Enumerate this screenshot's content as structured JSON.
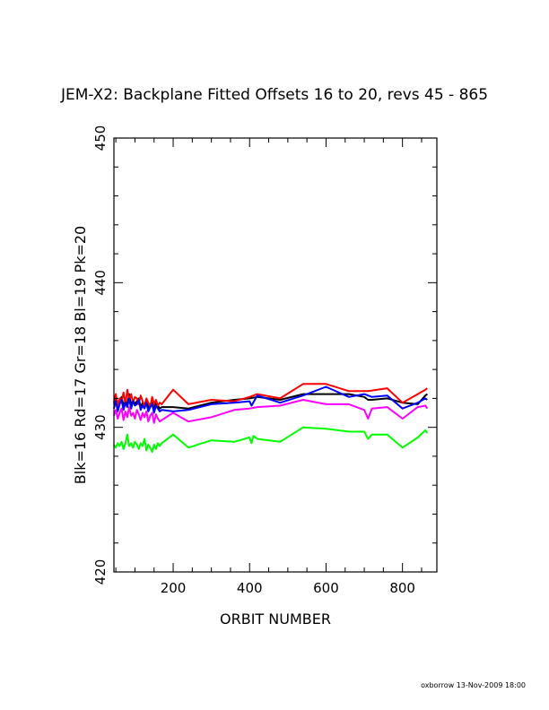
{
  "chart_data": {
    "type": "line",
    "title": "JEM-X2: Backplane Fitted Offsets 16 to 20, revs 45 - 865",
    "xlabel": "ORBIT NUMBER",
    "ylabel": "Blk=16 Rd=17 Gr=18 Bl=19 Pk=20",
    "xlim": [
      45,
      890
    ],
    "ylim": [
      420,
      450
    ],
    "xticks": [
      "200",
      "400",
      "600",
      "800"
    ],
    "yticks": [
      "420",
      "430",
      "440",
      "450"
    ],
    "grid": false,
    "series": [
      {
        "color": "#000000",
        "x": [
          45,
          50,
          55,
          60,
          65,
          70,
          75,
          80,
          85,
          90,
          95,
          100,
          105,
          110,
          115,
          120,
          125,
          130,
          135,
          140,
          145,
          150,
          155,
          160,
          165,
          170,
          200,
          240,
          300,
          360,
          400,
          420,
          480,
          540,
          600,
          660,
          700,
          710,
          720,
          760,
          800,
          840,
          860,
          865
        ],
        "y": [
          431.6,
          431.9,
          431.4,
          431.7,
          432.1,
          431.5,
          431.8,
          431.6,
          432.3,
          431.5,
          431.9,
          431.6,
          431.8,
          432.0,
          431.4,
          431.7,
          431.5,
          431.9,
          431.3,
          431.6,
          431.8,
          431.2,
          431.7,
          431.5,
          431.3,
          431.4,
          431.4,
          431.3,
          431.7,
          431.9,
          432.0,
          432.1,
          431.9,
          432.3,
          432.3,
          432.3,
          432.1,
          431.9,
          431.9,
          432.0,
          431.7,
          431.6,
          432.2,
          432.3
        ]
      },
      {
        "color": "#ff0000",
        "x": [
          45,
          50,
          55,
          60,
          65,
          70,
          75,
          80,
          85,
          90,
          95,
          100,
          105,
          110,
          115,
          120,
          125,
          130,
          135,
          140,
          145,
          150,
          155,
          160,
          165,
          170,
          200,
          240,
          300,
          360,
          400,
          420,
          480,
          540,
          600,
          660,
          710,
          760,
          800,
          840,
          860,
          865
        ],
        "y": [
          431.7,
          432.3,
          431.5,
          432.0,
          431.8,
          432.4,
          431.6,
          432.6,
          431.9,
          432.3,
          431.7,
          432.1,
          432.0,
          431.6,
          432.2,
          431.8,
          431.5,
          432.0,
          431.7,
          431.4,
          432.1,
          431.6,
          431.9,
          431.5,
          431.7,
          431.6,
          432.6,
          431.6,
          431.9,
          431.8,
          432.1,
          432.3,
          432.0,
          433.0,
          433.0,
          432.5,
          432.5,
          432.7,
          431.7,
          432.3,
          432.6,
          432.7
        ]
      },
      {
        "color": "#00ff00",
        "x": [
          45,
          50,
          55,
          60,
          65,
          70,
          75,
          80,
          85,
          90,
          95,
          100,
          105,
          110,
          115,
          120,
          125,
          130,
          135,
          140,
          145,
          150,
          155,
          160,
          165,
          170,
          200,
          240,
          300,
          360,
          400,
          405,
          410,
          420,
          480,
          540,
          600,
          660,
          700,
          710,
          720,
          760,
          800,
          840,
          860,
          865
        ],
        "y": [
          428.8,
          428.6,
          428.9,
          428.7,
          429.0,
          428.5,
          428.9,
          429.5,
          428.7,
          428.9,
          428.6,
          429.0,
          428.8,
          428.5,
          428.9,
          428.7,
          429.2,
          428.4,
          428.8,
          428.6,
          428.3,
          428.8,
          428.5,
          428.9,
          428.7,
          428.9,
          429.5,
          428.6,
          429.1,
          429.0,
          429.3,
          428.9,
          429.4,
          429.2,
          429.0,
          430.0,
          429.9,
          429.7,
          429.7,
          429.2,
          429.5,
          429.5,
          428.6,
          429.3,
          429.8,
          429.6
        ]
      },
      {
        "color": "#0000ff",
        "x": [
          45,
          50,
          55,
          60,
          65,
          70,
          75,
          80,
          85,
          90,
          95,
          100,
          105,
          110,
          115,
          120,
          125,
          130,
          135,
          140,
          145,
          150,
          155,
          160,
          165,
          170,
          200,
          240,
          300,
          360,
          400,
          405,
          420,
          480,
          540,
          600,
          660,
          700,
          720,
          760,
          800,
          840,
          860,
          865
        ],
        "y": [
          431.3,
          431.8,
          431.1,
          431.6,
          431.9,
          431.2,
          431.7,
          431.4,
          432.0,
          431.3,
          431.8,
          431.5,
          431.6,
          431.9,
          431.2,
          431.5,
          431.3,
          431.7,
          431.1,
          431.4,
          431.6,
          431.0,
          431.5,
          431.3,
          431.1,
          431.2,
          431.1,
          431.2,
          431.6,
          431.7,
          431.8,
          431.5,
          432.2,
          431.7,
          432.2,
          432.8,
          432.1,
          432.3,
          432.1,
          432.2,
          431.3,
          431.7,
          432.0,
          431.9
        ]
      },
      {
        "color": "#ff00ff",
        "x": [
          45,
          50,
          55,
          60,
          65,
          70,
          75,
          80,
          85,
          90,
          95,
          100,
          105,
          110,
          115,
          120,
          125,
          130,
          135,
          140,
          145,
          150,
          155,
          160,
          165,
          170,
          200,
          240,
          300,
          360,
          400,
          420,
          480,
          540,
          600,
          660,
          700,
          710,
          720,
          760,
          800,
          840,
          860,
          865
        ],
        "y": [
          430.8,
          431.2,
          430.6,
          431.0,
          431.3,
          430.5,
          431.1,
          430.7,
          431.4,
          430.8,
          431.0,
          430.6,
          431.2,
          430.9,
          430.5,
          431.0,
          430.7,
          431.1,
          430.4,
          430.8,
          431.0,
          430.3,
          430.9,
          430.6,
          430.4,
          430.5,
          431.0,
          430.4,
          430.7,
          431.2,
          431.3,
          431.4,
          431.5,
          431.9,
          431.6,
          431.6,
          431.2,
          430.6,
          431.3,
          431.4,
          430.6,
          431.4,
          431.5,
          431.3
        ]
      }
    ]
  },
  "footer": "oxborrow 13-Nov-2009 18:00"
}
